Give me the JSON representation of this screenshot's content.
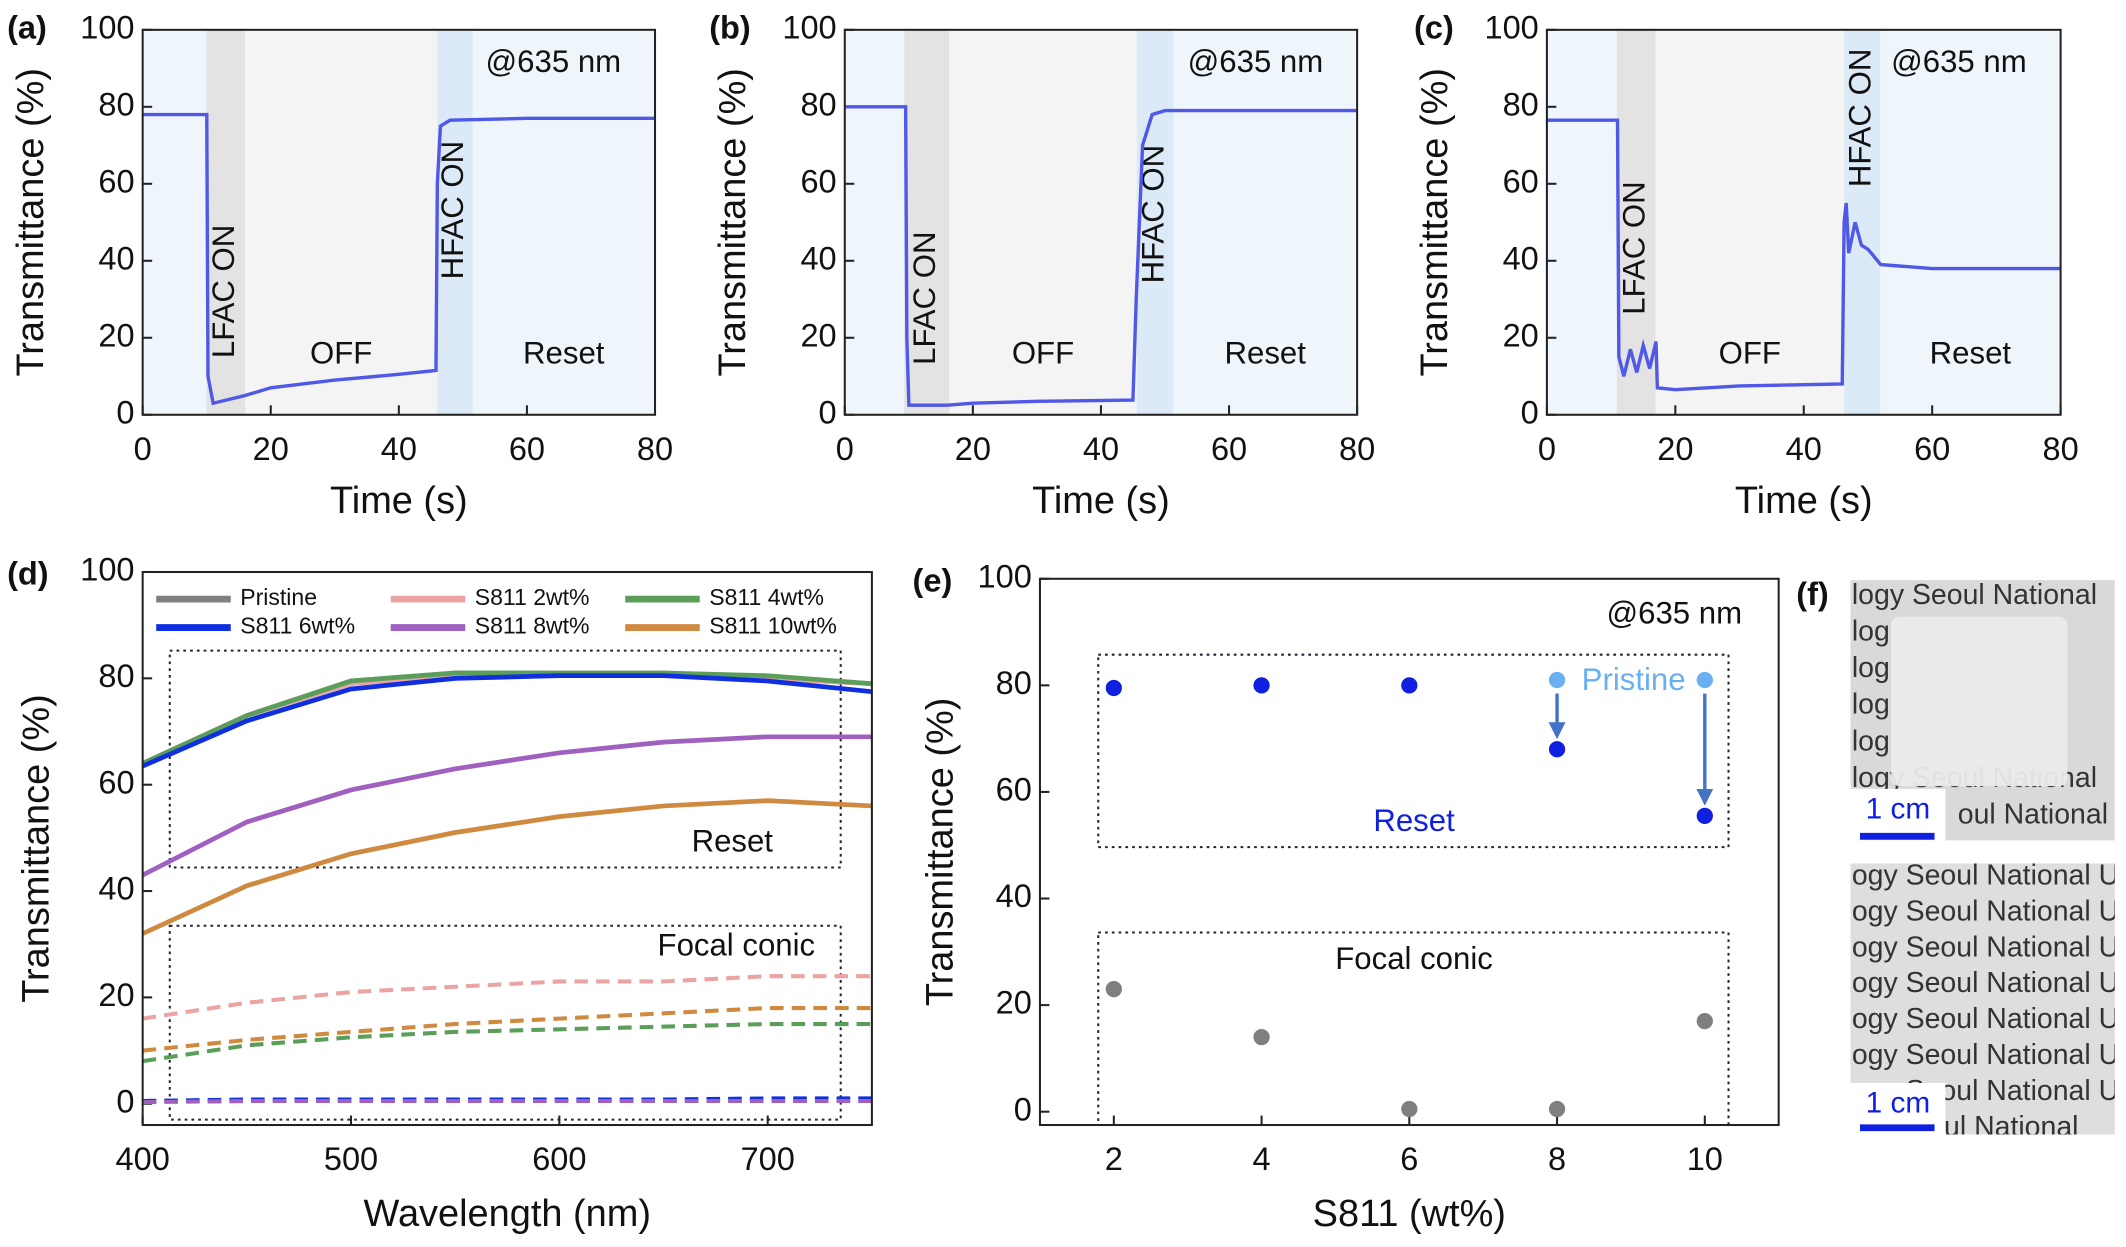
{
  "chart_data": [
    {
      "type": "line",
      "panel_label": "(a)",
      "xlabel": "Time (s)",
      "ylabel": "Transmittance (%)",
      "xlim": [
        0,
        80
      ],
      "ylim": [
        0,
        100
      ],
      "xticks": [
        0,
        20,
        40,
        60,
        80
      ],
      "yticks": [
        0,
        20,
        40,
        60,
        80,
        100
      ],
      "regions": [
        {
          "label": "LFAC ON",
          "x": [
            10,
            16
          ],
          "color": "#e3e3e3"
        },
        {
          "label": "HFAC ON",
          "x": [
            46,
            51.5
          ],
          "color": "#dce9f6"
        }
      ],
      "annotations": [
        "OFF",
        "Reset",
        "@635 nm"
      ],
      "x": [
        0,
        10,
        10.2,
        11,
        16,
        20,
        30,
        40,
        45.8,
        46,
        46.5,
        48,
        60,
        80
      ],
      "series": [
        {
          "color": "#5058e8",
          "values": [
            78,
            78,
            10,
            3,
            5,
            7,
            9,
            10.5,
            11.5,
            60,
            75,
            76.5,
            77,
            77
          ]
        }
      ]
    },
    {
      "type": "line",
      "panel_label": "(b)",
      "xlabel": "Time (s)",
      "ylabel": "Transmittance (%)",
      "xlim": [
        0,
        80
      ],
      "ylim": [
        0,
        100
      ],
      "xticks": [
        0,
        20,
        40,
        60,
        80
      ],
      "yticks": [
        0,
        20,
        40,
        60,
        80,
        100
      ],
      "regions": [
        {
          "label": "LFAC ON",
          "x": [
            9.3,
            16.3
          ],
          "color": "#e3e3e3"
        },
        {
          "label": "HFAC ON",
          "x": [
            45.6,
            51.3
          ],
          "color": "#dce9f6"
        }
      ],
      "annotations": [
        "OFF",
        "Reset",
        "@635 nm"
      ],
      "x": [
        0,
        9.5,
        9.7,
        10,
        16,
        20,
        30,
        45,
        45.5,
        46.5,
        48,
        50,
        60,
        80
      ],
      "series": [
        {
          "color": "#5058e8",
          "values": [
            80,
            80,
            20,
            2.5,
            2.5,
            3,
            3.5,
            3.8,
            30,
            70,
            78,
            79,
            79,
            79
          ]
        }
      ]
    },
    {
      "type": "line",
      "panel_label": "(c)",
      "xlabel": "Time (s)",
      "ylabel": "Transmittance (%)",
      "xlim": [
        0,
        80
      ],
      "ylim": [
        0,
        100
      ],
      "xticks": [
        0,
        20,
        40,
        60,
        80
      ],
      "yticks": [
        0,
        20,
        40,
        60,
        80,
        100
      ],
      "regions": [
        {
          "label": "LFAC ON",
          "x": [
            10.9,
            16.9
          ],
          "color": "#e3e3e3"
        },
        {
          "label": "HFAC ON",
          "x": [
            46.3,
            51.9
          ],
          "color": "#dce9f6"
        }
      ],
      "annotations": [
        "OFF",
        "Reset",
        "@635 nm"
      ],
      "x": [
        0,
        11,
        11.2,
        12,
        13,
        14,
        15,
        16,
        17,
        17.2,
        20,
        30,
        46,
        46.3,
        46.6,
        47,
        48,
        49,
        50,
        52,
        60,
        80
      ],
      "series": [
        {
          "color": "#5058e8",
          "values": [
            76.5,
            76.5,
            15,
            10,
            17,
            11,
            18,
            12,
            19,
            7,
            6.5,
            7.5,
            8,
            50,
            55,
            42,
            50,
            44,
            43,
            39,
            38,
            38
          ]
        }
      ]
    },
    {
      "type": "line",
      "panel_label": "(d)",
      "xlabel": "Wavelength (nm)",
      "ylabel": "Transmittance (%)",
      "xlim": [
        400,
        750
      ],
      "ylim": [
        -4,
        100
      ],
      "xticks": [
        400,
        500,
        600,
        700
      ],
      "yticks": [
        0,
        20,
        40,
        60,
        80,
        100
      ],
      "annotations": [
        "Reset",
        "Focal conic"
      ],
      "x": [
        400,
        450,
        500,
        550,
        600,
        650,
        700,
        750
      ],
      "series": [
        {
          "name": "Pristine",
          "color": "#7f7f7f",
          "values": [
            64,
            73,
            79.5,
            81,
            81,
            81,
            80,
            79
          ],
          "focal_conic_values": [
            0.4,
            0.5,
            0.5,
            0.5,
            0.5,
            0.5,
            0.6,
            0.6
          ]
        },
        {
          "name": "S811 2wt%",
          "color": "#eba3a3",
          "values": [
            64,
            73,
            79,
            80.5,
            81,
            81,
            80,
            79
          ],
          "focal_conic_values": [
            16,
            19,
            21,
            22,
            23,
            23,
            24,
            24
          ]
        },
        {
          "name": "S811 4wt%",
          "color": "#5a9e5a",
          "values": [
            64,
            73,
            79.5,
            81,
            81,
            81,
            80.5,
            79
          ],
          "focal_conic_values": [
            8,
            11,
            12.5,
            13.5,
            14,
            14.5,
            15,
            15
          ]
        },
        {
          "name": "S811 6wt%",
          "color": "#1030e0",
          "values": [
            63.5,
            72,
            78,
            80,
            80.5,
            80.5,
            79.5,
            77.5
          ],
          "focal_conic_values": [
            0.5,
            0.8,
            0.8,
            0.8,
            0.8,
            0.8,
            1,
            1
          ]
        },
        {
          "name": "S811 8wt%",
          "color": "#a060c0",
          "values": [
            43,
            53,
            59,
            63,
            66,
            68,
            69,
            69
          ],
          "focal_conic_values": [
            0.3,
            0.5,
            0.5,
            0.5,
            0.5,
            0.5,
            0.5,
            0.5
          ]
        },
        {
          "name": "S811 10wt%",
          "color": "#d08a40",
          "values": [
            32,
            41,
            47,
            51,
            54,
            56,
            57,
            56
          ],
          "focal_conic_values": [
            10,
            12,
            13.5,
            15,
            16,
            17,
            18,
            18
          ]
        }
      ]
    },
    {
      "type": "scatter",
      "panel_label": "(e)",
      "xlabel": "S811 (wt%)",
      "ylabel": "Transmittance (%)",
      "xlim": [
        1,
        11
      ],
      "ylim": [
        -2.5,
        100
      ],
      "xticks": [
        2,
        4,
        6,
        8,
        10
      ],
      "yticks": [
        0,
        20,
        40,
        60,
        80,
        100
      ],
      "annotations": [
        "@635 nm"
      ],
      "series": [
        {
          "name": "Reset",
          "color": "#1020e0",
          "x": [
            2,
            4,
            6,
            8,
            10
          ],
          "values": [
            79.5,
            80,
            80,
            68,
            55.5
          ]
        },
        {
          "name": "Focal conic",
          "color": "#7f7f7f",
          "x": [
            2,
            4,
            6,
            8,
            10
          ],
          "values": [
            23,
            14,
            0.5,
            0.5,
            17
          ]
        },
        {
          "name": "Pristine",
          "color": "#6ab0f0",
          "x": [
            8,
            10
          ],
          "values": [
            81,
            81
          ]
        }
      ]
    }
  ],
  "photo": {
    "label": "(f)",
    "scale_bar": "1 cm",
    "top_text": [
      "logy Seoul National",
      "log",
      "log",
      "log",
      "log",
      "logy Seoul National",
      "oul National"
    ],
    "bottom_text": [
      "ogy Seoul National Un",
      "ogy Seoul National Un",
      "ogy Seoul National Un",
      "ogy Seoul National Un",
      "ogy Seoul National Un",
      "ogy Seoul National Un",
      "ogy Seoul National Un",
      "ul National"
    ]
  }
}
